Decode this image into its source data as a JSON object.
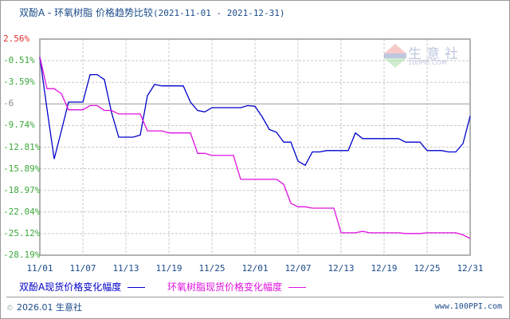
{
  "title": {
    "main": "双酚A - 环氧树脂 价格趋势比较",
    "range": "(2021-11-01 - 2021-12-31)"
  },
  "watermark": {
    "name": "生意社",
    "url": "100PPI.COM",
    "badge": "PPI"
  },
  "legend": {
    "series1": "双酚A现货价格变化幅度",
    "series2": "环氧树脂现货价格变化幅度"
  },
  "footer": {
    "copyright_symbol": "©",
    "left": "2026.01 生意社",
    "right": "www.100PPI.com"
  },
  "colors": {
    "series1": "#0000cc",
    "series2": "#e010e0",
    "grid": "#c8c8c8",
    "axis": "#999999",
    "top_label": "#e03030",
    "tick_label": "#3aa83a"
  },
  "chart_data": {
    "type": "line",
    "title": "双酚A - 环氧树脂 价格趋势比较(2021-11-01 - 2021-12-31)",
    "xlabel": "",
    "ylabel": "",
    "ylim": [
      -28.19,
      2.56
    ],
    "y_ticks": [
      "2.56%",
      "-0.51%",
      "-3.59%",
      "-6",
      "-9.74%",
      "-12.81%",
      "-15.89%",
      "-18.97%",
      "-22.04%",
      "-25.12%",
      "-28.19%"
    ],
    "x_ticks": [
      "11/01",
      "11/07",
      "11/13",
      "11/19",
      "11/25",
      "12/01",
      "12/07",
      "12/13",
      "12/19",
      "12/25",
      "12/31"
    ],
    "grid": true,
    "legend_position": "bottom",
    "x": [
      "11/01",
      "11/02",
      "11/03",
      "11/04",
      "11/05",
      "11/06",
      "11/07",
      "11/08",
      "11/09",
      "11/10",
      "11/11",
      "11/12",
      "11/13",
      "11/14",
      "11/15",
      "11/16",
      "11/17",
      "11/18",
      "11/19",
      "11/20",
      "11/21",
      "11/22",
      "11/23",
      "11/24",
      "11/25",
      "11/26",
      "11/27",
      "11/28",
      "11/29",
      "11/30",
      "12/01",
      "12/02",
      "12/03",
      "12/04",
      "12/05",
      "12/06",
      "12/07",
      "12/08",
      "12/09",
      "12/10",
      "12/11",
      "12/12",
      "12/13",
      "12/14",
      "12/15",
      "12/16",
      "12/17",
      "12/18",
      "12/19",
      "12/20",
      "12/21",
      "12/22",
      "12/23",
      "12/24",
      "12/25",
      "12/26",
      "12/27",
      "12/28",
      "12/29",
      "12/30",
      "12/31"
    ],
    "series": [
      {
        "name": "双酚A现货价格变化幅度",
        "color": "#0000cc",
        "values": [
          0.0,
          -7.4,
          -14.5,
          -10.5,
          -6.4,
          -6.4,
          -6.4,
          -2.5,
          -2.5,
          -3.2,
          -7.9,
          -11.4,
          -11.4,
          -11.4,
          -11.1,
          -5.5,
          -3.9,
          -4.1,
          -4.1,
          -4.1,
          -4.1,
          -6.4,
          -7.6,
          -7.8,
          -7.2,
          -7.2,
          -7.2,
          -7.2,
          -7.2,
          -6.9,
          -7.0,
          -8.5,
          -10.3,
          -10.7,
          -12.1,
          -12.1,
          -14.8,
          -15.4,
          -13.5,
          -13.5,
          -13.3,
          -13.3,
          -13.3,
          -13.3,
          -10.8,
          -11.6,
          -11.6,
          -11.6,
          -11.6,
          -11.6,
          -11.6,
          -12.1,
          -12.1,
          -12.1,
          -13.3,
          -13.3,
          -13.3,
          -13.5,
          -13.5,
          -12.3,
          -8.4
        ]
      },
      {
        "name": "环氧树脂现货价格变化幅度",
        "color": "#e010e0",
        "values": [
          0.0,
          -4.5,
          -4.5,
          -5.2,
          -7.5,
          -7.5,
          -7.5,
          -6.9,
          -6.9,
          -7.6,
          -7.6,
          -8.1,
          -8.1,
          -8.1,
          -8.1,
          -10.5,
          -10.5,
          -10.5,
          -10.8,
          -10.8,
          -10.8,
          -10.8,
          -13.7,
          -13.7,
          -14.0,
          -14.0,
          -14.0,
          -14.0,
          -17.4,
          -17.4,
          -17.4,
          -17.4,
          -17.4,
          -17.4,
          -18.1,
          -20.8,
          -21.3,
          -21.3,
          -21.5,
          -21.5,
          -21.5,
          -21.5,
          -25.0,
          -25.0,
          -25.0,
          -24.8,
          -25.0,
          -25.0,
          -25.0,
          -25.0,
          -25.0,
          -25.1,
          -25.1,
          -25.1,
          -25.0,
          -25.0,
          -25.0,
          -25.0,
          -25.0,
          -25.3,
          -25.8
        ]
      }
    ]
  }
}
